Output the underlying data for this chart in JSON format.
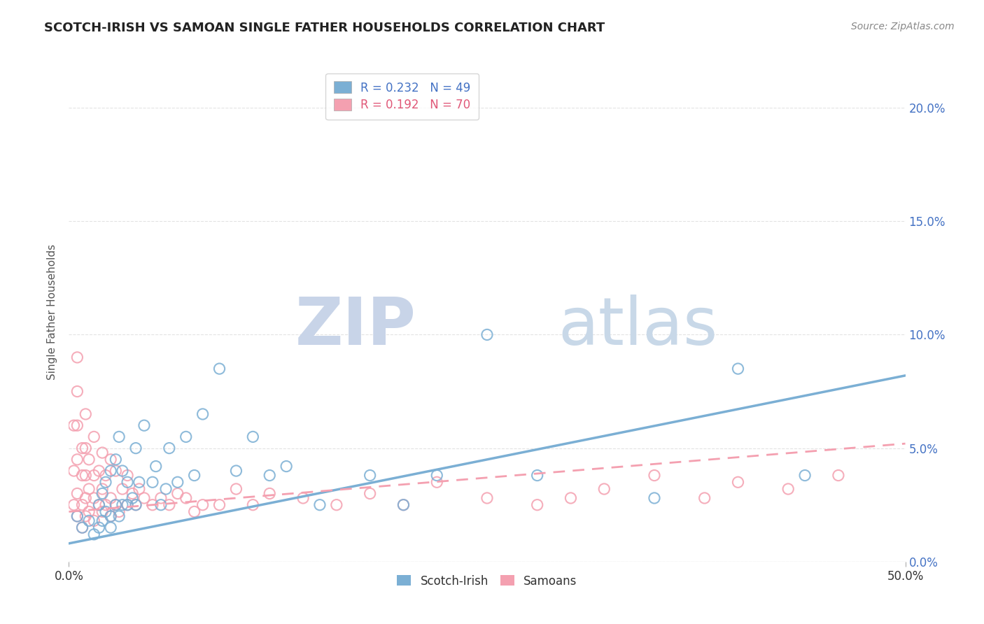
{
  "title": "SCOTCH-IRISH VS SAMOAN SINGLE FATHER HOUSEHOLDS CORRELATION CHART",
  "source": "Source: ZipAtlas.com",
  "ylabel": "Single Father Households",
  "xlim": [
    0,
    0.5
  ],
  "ylim": [
    0,
    0.22
  ],
  "xtick_positions": [
    0.0,
    0.5
  ],
  "xticklabels": [
    "0.0%",
    "50.0%"
  ],
  "yticks": [
    0.0,
    0.05,
    0.1,
    0.15,
    0.2
  ],
  "yticklabels_right": [
    "0.0%",
    "5.0%",
    "10.0%",
    "15.0%",
    "20.0%"
  ],
  "scotch_irish_color": "#7bafd4",
  "samoan_color": "#f4a0b0",
  "scotch_irish_R": 0.232,
  "scotch_irish_N": 49,
  "samoan_R": 0.192,
  "samoan_N": 70,
  "watermark_zip_color": "#c8d4e8",
  "watermark_atlas_color": "#c8d8e8",
  "scotch_irish_scatter_x": [
    0.005,
    0.008,
    0.012,
    0.015,
    0.018,
    0.018,
    0.02,
    0.02,
    0.022,
    0.022,
    0.025,
    0.025,
    0.025,
    0.028,
    0.028,
    0.03,
    0.03,
    0.032,
    0.032,
    0.035,
    0.035,
    0.038,
    0.04,
    0.04,
    0.042,
    0.045,
    0.05,
    0.052,
    0.055,
    0.058,
    0.06,
    0.065,
    0.07,
    0.075,
    0.08,
    0.09,
    0.1,
    0.11,
    0.12,
    0.13,
    0.15,
    0.18,
    0.2,
    0.22,
    0.25,
    0.28,
    0.35,
    0.4,
    0.44
  ],
  "scotch_irish_scatter_y": [
    0.02,
    0.015,
    0.018,
    0.012,
    0.015,
    0.025,
    0.018,
    0.03,
    0.022,
    0.035,
    0.015,
    0.02,
    0.04,
    0.025,
    0.045,
    0.02,
    0.055,
    0.025,
    0.04,
    0.025,
    0.035,
    0.028,
    0.025,
    0.05,
    0.035,
    0.06,
    0.035,
    0.042,
    0.025,
    0.032,
    0.05,
    0.035,
    0.055,
    0.038,
    0.065,
    0.085,
    0.04,
    0.055,
    0.038,
    0.042,
    0.025,
    0.038,
    0.025,
    0.038,
    0.1,
    0.038,
    0.028,
    0.085,
    0.038
  ],
  "samoan_scatter_x": [
    0.003,
    0.003,
    0.003,
    0.005,
    0.005,
    0.005,
    0.005,
    0.005,
    0.005,
    0.008,
    0.008,
    0.008,
    0.008,
    0.01,
    0.01,
    0.01,
    0.01,
    0.01,
    0.012,
    0.012,
    0.012,
    0.015,
    0.015,
    0.015,
    0.015,
    0.018,
    0.018,
    0.02,
    0.02,
    0.02,
    0.022,
    0.022,
    0.025,
    0.025,
    0.025,
    0.028,
    0.028,
    0.03,
    0.032,
    0.035,
    0.035,
    0.038,
    0.04,
    0.042,
    0.045,
    0.05,
    0.055,
    0.06,
    0.065,
    0.07,
    0.075,
    0.08,
    0.09,
    0.1,
    0.11,
    0.12,
    0.14,
    0.16,
    0.18,
    0.2,
    0.22,
    0.25,
    0.28,
    0.3,
    0.32,
    0.35,
    0.38,
    0.4,
    0.43,
    0.46
  ],
  "samoan_scatter_y": [
    0.025,
    0.04,
    0.06,
    0.02,
    0.03,
    0.045,
    0.06,
    0.075,
    0.09,
    0.015,
    0.025,
    0.038,
    0.05,
    0.02,
    0.028,
    0.038,
    0.05,
    0.065,
    0.022,
    0.032,
    0.045,
    0.018,
    0.028,
    0.038,
    0.055,
    0.025,
    0.04,
    0.022,
    0.032,
    0.048,
    0.025,
    0.038,
    0.02,
    0.028,
    0.045,
    0.025,
    0.04,
    0.022,
    0.032,
    0.025,
    0.038,
    0.03,
    0.025,
    0.032,
    0.028,
    0.025,
    0.028,
    0.025,
    0.03,
    0.028,
    0.022,
    0.025,
    0.025,
    0.032,
    0.025,
    0.03,
    0.028,
    0.025,
    0.03,
    0.025,
    0.035,
    0.028,
    0.025,
    0.028,
    0.032,
    0.038,
    0.028,
    0.035,
    0.032,
    0.038
  ],
  "legend_labels": [
    "Scotch-Irish",
    "Samoans"
  ],
  "background_color": "#ffffff",
  "grid_color": "#e0e0e0",
  "line_si_start_y": 0.008,
  "line_si_end_y": 0.082,
  "line_sa_start_y": 0.022,
  "line_sa_end_y": 0.052
}
